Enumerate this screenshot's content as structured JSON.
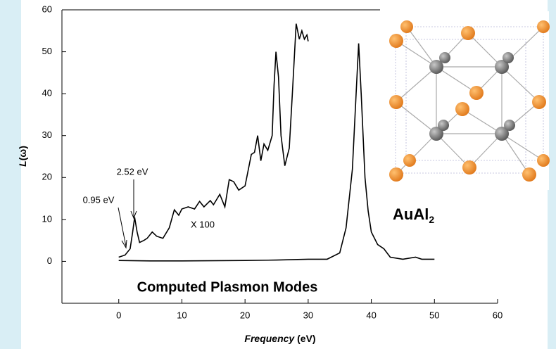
{
  "chart_data": {
    "type": "line",
    "x_label": {
      "italic": "Frequency",
      "rest": " (eV)"
    },
    "y_label": {
      "italic": "L",
      "rest": "(ω)"
    },
    "xlim": [
      -9,
      60
    ],
    "xticks": [
      0,
      10,
      20,
      30,
      40,
      50,
      60
    ],
    "ylim": [
      -10,
      60
    ],
    "yticks": [
      0,
      10,
      20,
      30,
      40,
      50,
      60
    ],
    "series": [
      {
        "color": "#000000",
        "x": [
          0,
          1,
          1.8,
          2.2,
          2.52,
          2.9,
          3.3,
          4,
          4.5,
          5.3,
          6,
          7,
          8,
          8.8,
          9.5,
          10,
          11,
          12,
          12.8,
          13.5,
          14.5,
          15,
          16,
          16.8,
          17.5,
          18.2,
          19,
          20,
          21,
          21.5,
          22,
          22.5,
          23,
          23.6,
          24.3,
          24.6,
          24.9,
          25.3,
          25.7,
          26.3,
          27,
          27.5,
          28.1,
          28.6,
          29,
          29.4,
          29.8,
          30
        ],
        "values": [
          1,
          1.5,
          3,
          7,
          10.5,
          7,
          4.5,
          5,
          5.5,
          7,
          6,
          5.5,
          8,
          12.3,
          11,
          12.5,
          13,
          12.5,
          14.3,
          13,
          14.5,
          13.5,
          16,
          13,
          19.5,
          19,
          17,
          18,
          25.5,
          26,
          30,
          24,
          28,
          26.5,
          30,
          42,
          50,
          44,
          30,
          22.8,
          27,
          40,
          56.7,
          53,
          55,
          53,
          54,
          52.5
        ]
      },
      {
        "color": "#000000",
        "x": [
          0,
          5,
          10,
          20,
          25,
          30,
          33,
          35,
          36,
          37,
          37.6,
          38,
          38.4,
          39,
          39.5,
          40,
          41,
          42,
          43,
          45,
          47,
          48,
          50
        ],
        "values": [
          0.2,
          0.1,
          0.1,
          0.2,
          0.3,
          0.5,
          0.5,
          2,
          8,
          22,
          40,
          52,
          40,
          20,
          12,
          7,
          4,
          3,
          1,
          0.5,
          1,
          0.5,
          0.5
        ]
      }
    ],
    "annotations": [
      {
        "text": "2.52 eV"
      },
      {
        "text": "0.95 eV"
      },
      {
        "text": "X 100"
      },
      {
        "text": "Computed Plasmon  Modes"
      },
      {
        "text": "AuAl",
        "subscript": "2"
      }
    ]
  }
}
